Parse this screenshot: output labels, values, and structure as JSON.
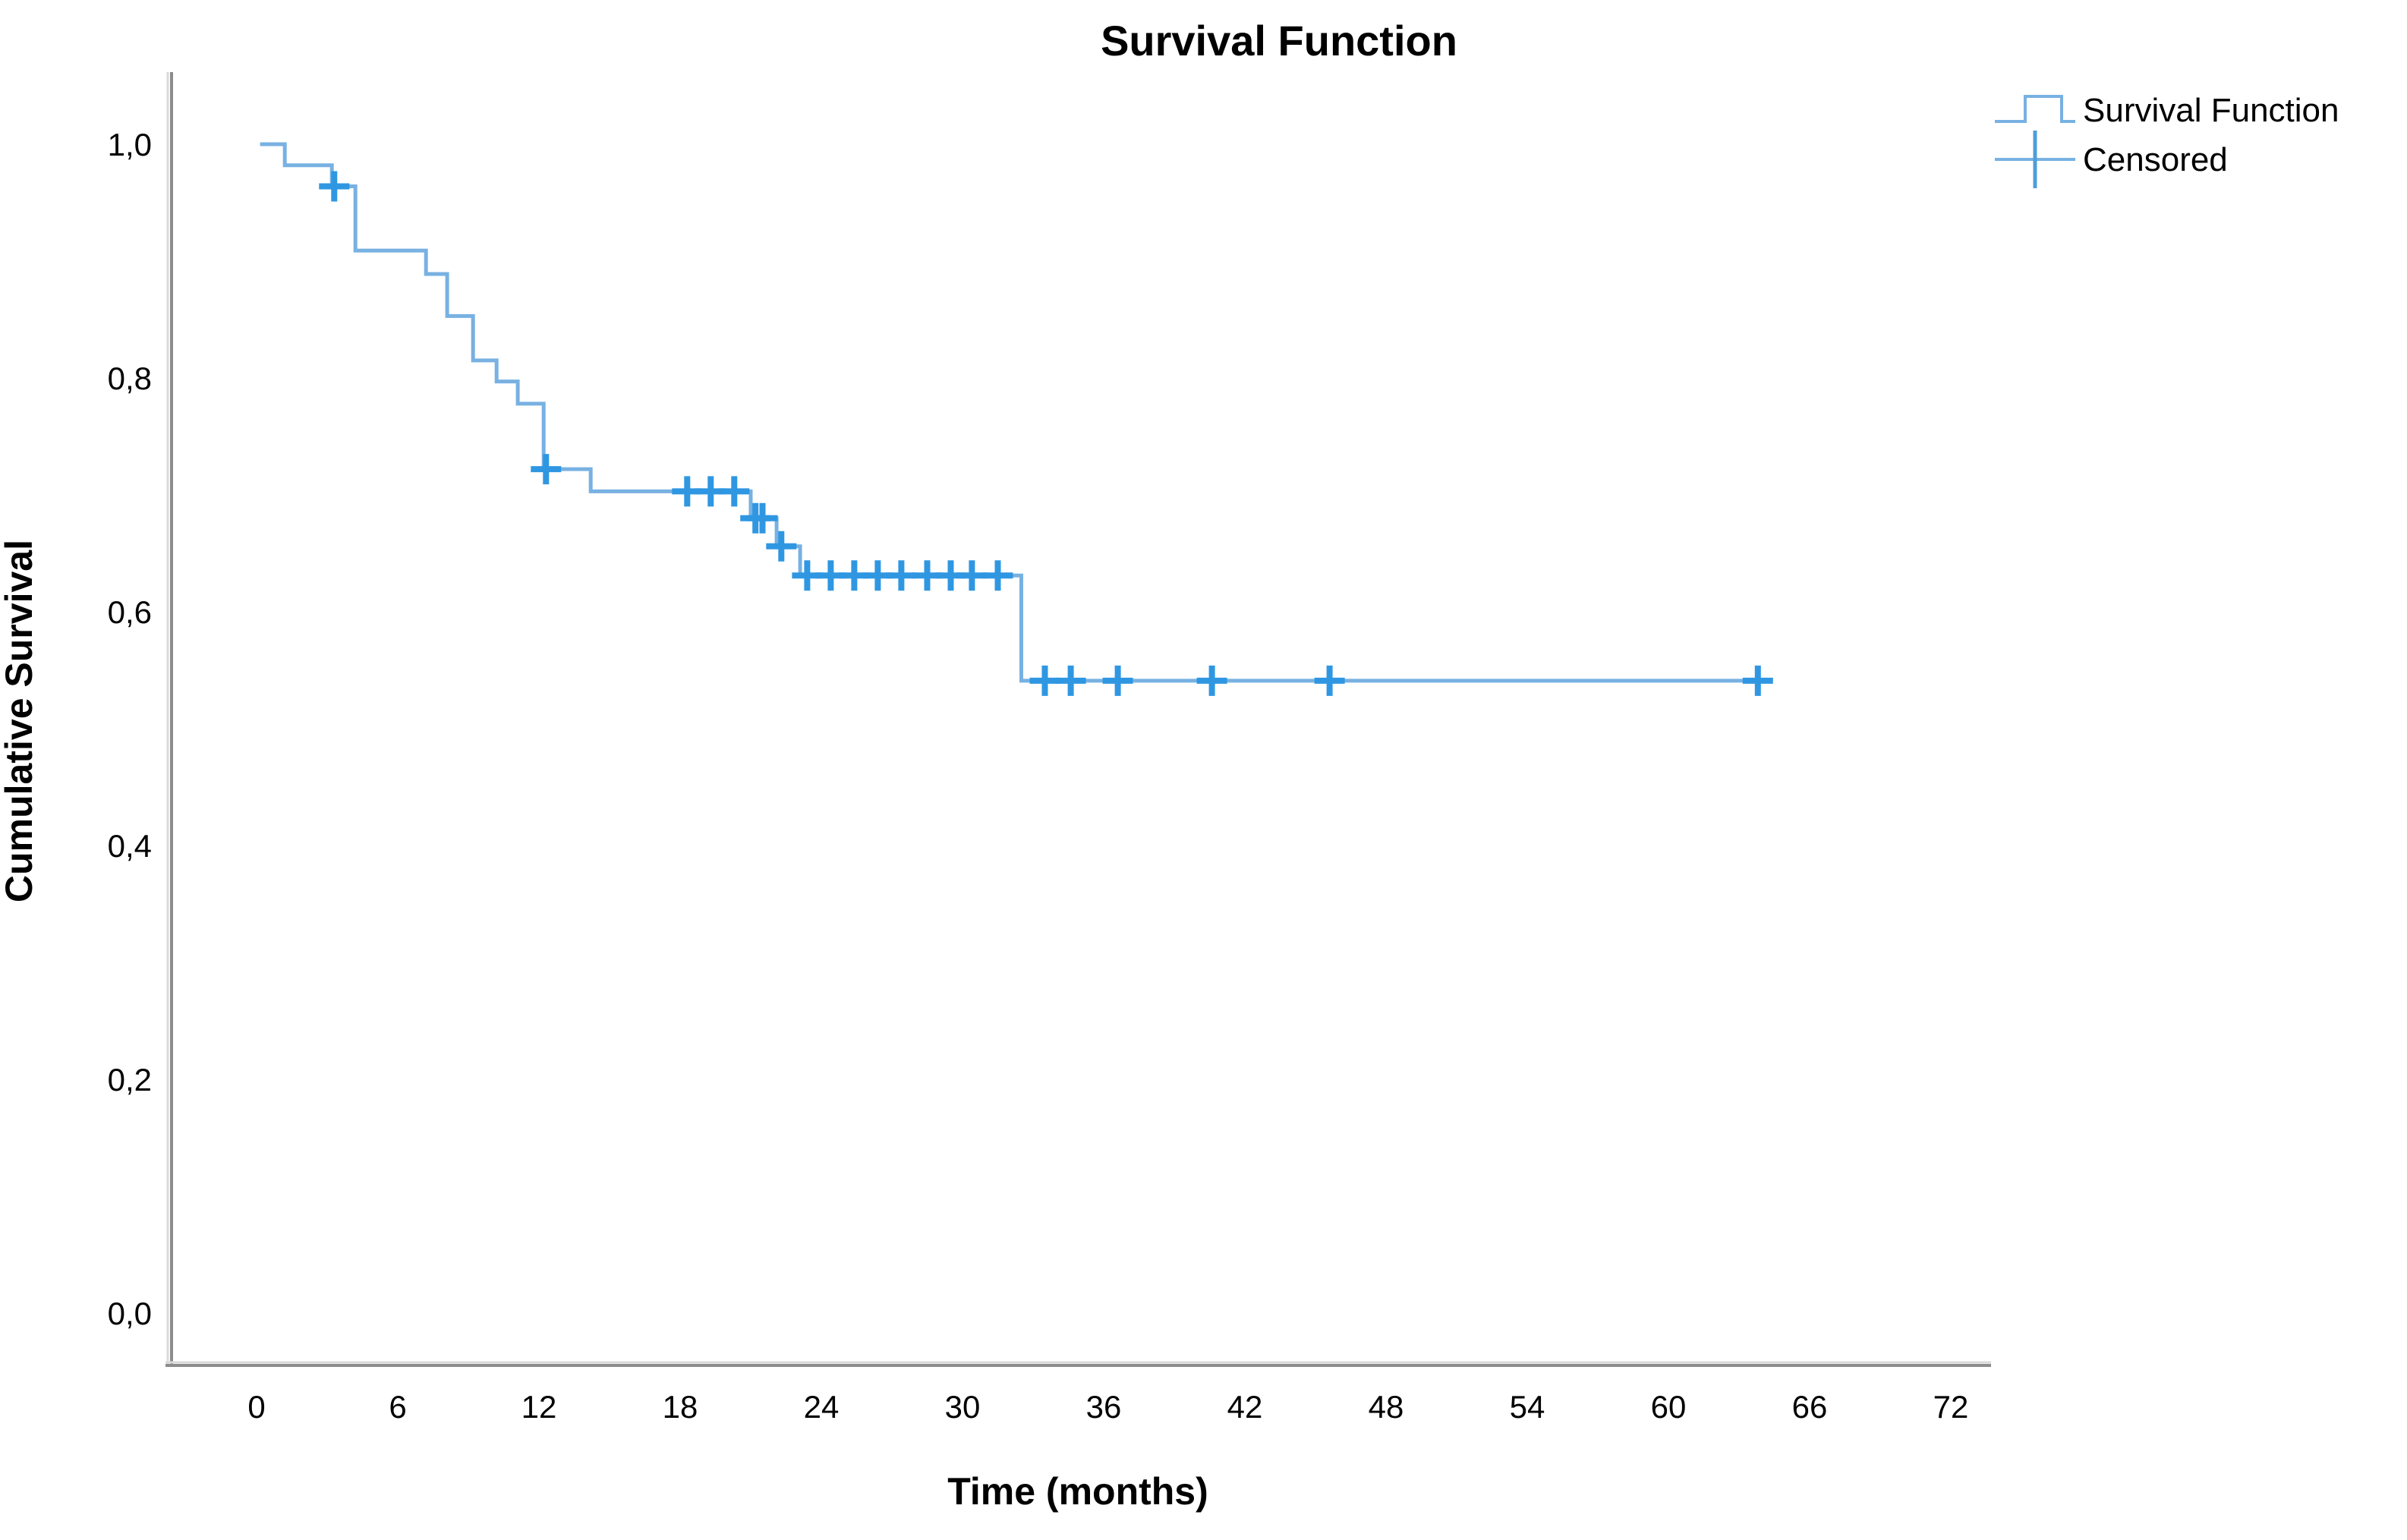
{
  "title": "Survival Function",
  "legend": {
    "items": [
      {
        "label": "Survival Function",
        "symbol": "step-line"
      },
      {
        "label": "Censored",
        "symbol": "plus"
      }
    ]
  },
  "axes": {
    "x": {
      "label": "Time (months)",
      "ticks": [
        "0",
        "6",
        "12",
        "18",
        "24",
        "30",
        "36",
        "42",
        "48",
        "54",
        "60",
        "66",
        "72"
      ],
      "tick_values": [
        0,
        6,
        12,
        18,
        24,
        30,
        36,
        42,
        48,
        54,
        60,
        66,
        72
      ]
    },
    "y": {
      "label": "Cumulative Survival",
      "ticks": [
        "0,0",
        "0,2",
        "0,4",
        "0,6",
        "0,8",
        "1,0"
      ],
      "tick_values": [
        0.0,
        0.2,
        0.4,
        0.6,
        0.8,
        1.0
      ]
    }
  },
  "colors": {
    "curve": "#78B1E2",
    "censor": "#2F97E2",
    "legend_step": "#78B1E2",
    "legend_plus": "#4E9ED8",
    "axis": "#8C8C8C",
    "axis_bevel": "#D9D9D9",
    "text": "#000000"
  },
  "chart_data": {
    "type": "line",
    "subtype": "kaplan-meier-step",
    "title": "Survival Function",
    "xlabel": "Time (months)",
    "ylabel": "Cumulative Survival",
    "xlim": [
      -3.6,
      73.7
    ],
    "ylim": [
      -0.045,
      1.06
    ],
    "grid": false,
    "legend_position": "top-right",
    "curve_start_t": 0.15,
    "curve_end_t": 64.3,
    "survival_steps": [
      {
        "t": 0.15,
        "s": 1.0
      },
      {
        "t": 1.2,
        "s": 0.982
      },
      {
        "t": 3.2,
        "s": 0.964
      },
      {
        "t": 4.2,
        "s": 0.909
      },
      {
        "t": 7.2,
        "s": 0.889
      },
      {
        "t": 8.1,
        "s": 0.853
      },
      {
        "t": 9.2,
        "s": 0.815
      },
      {
        "t": 10.2,
        "s": 0.797
      },
      {
        "t": 11.1,
        "s": 0.778
      },
      {
        "t": 12.2,
        "s": 0.722
      },
      {
        "t": 14.2,
        "s": 0.703
      },
      {
        "t": 21.0,
        "s": 0.68
      },
      {
        "t": 22.1,
        "s": 0.656
      },
      {
        "t": 23.1,
        "s": 0.631
      },
      {
        "t": 32.5,
        "s": 0.541
      }
    ],
    "censored": [
      {
        "t": 3.3,
        "s": 0.964
      },
      {
        "t": 12.3,
        "s": 0.722
      },
      {
        "t": 18.3,
        "s": 0.703
      },
      {
        "t": 19.3,
        "s": 0.703
      },
      {
        "t": 20.3,
        "s": 0.703
      },
      {
        "t": 21.2,
        "s": 0.68
      },
      {
        "t": 21.5,
        "s": 0.68
      },
      {
        "t": 22.3,
        "s": 0.656
      },
      {
        "t": 23.4,
        "s": 0.631
      },
      {
        "t": 24.4,
        "s": 0.631
      },
      {
        "t": 25.4,
        "s": 0.631
      },
      {
        "t": 26.4,
        "s": 0.631
      },
      {
        "t": 27.4,
        "s": 0.631
      },
      {
        "t": 28.5,
        "s": 0.631
      },
      {
        "t": 29.5,
        "s": 0.631
      },
      {
        "t": 30.4,
        "s": 0.631
      },
      {
        "t": 31.5,
        "s": 0.631
      },
      {
        "t": 33.5,
        "s": 0.541
      },
      {
        "t": 34.6,
        "s": 0.541
      },
      {
        "t": 36.6,
        "s": 0.541
      },
      {
        "t": 40.6,
        "s": 0.541
      },
      {
        "t": 45.6,
        "s": 0.541
      },
      {
        "t": 63.8,
        "s": 0.541
      }
    ]
  }
}
